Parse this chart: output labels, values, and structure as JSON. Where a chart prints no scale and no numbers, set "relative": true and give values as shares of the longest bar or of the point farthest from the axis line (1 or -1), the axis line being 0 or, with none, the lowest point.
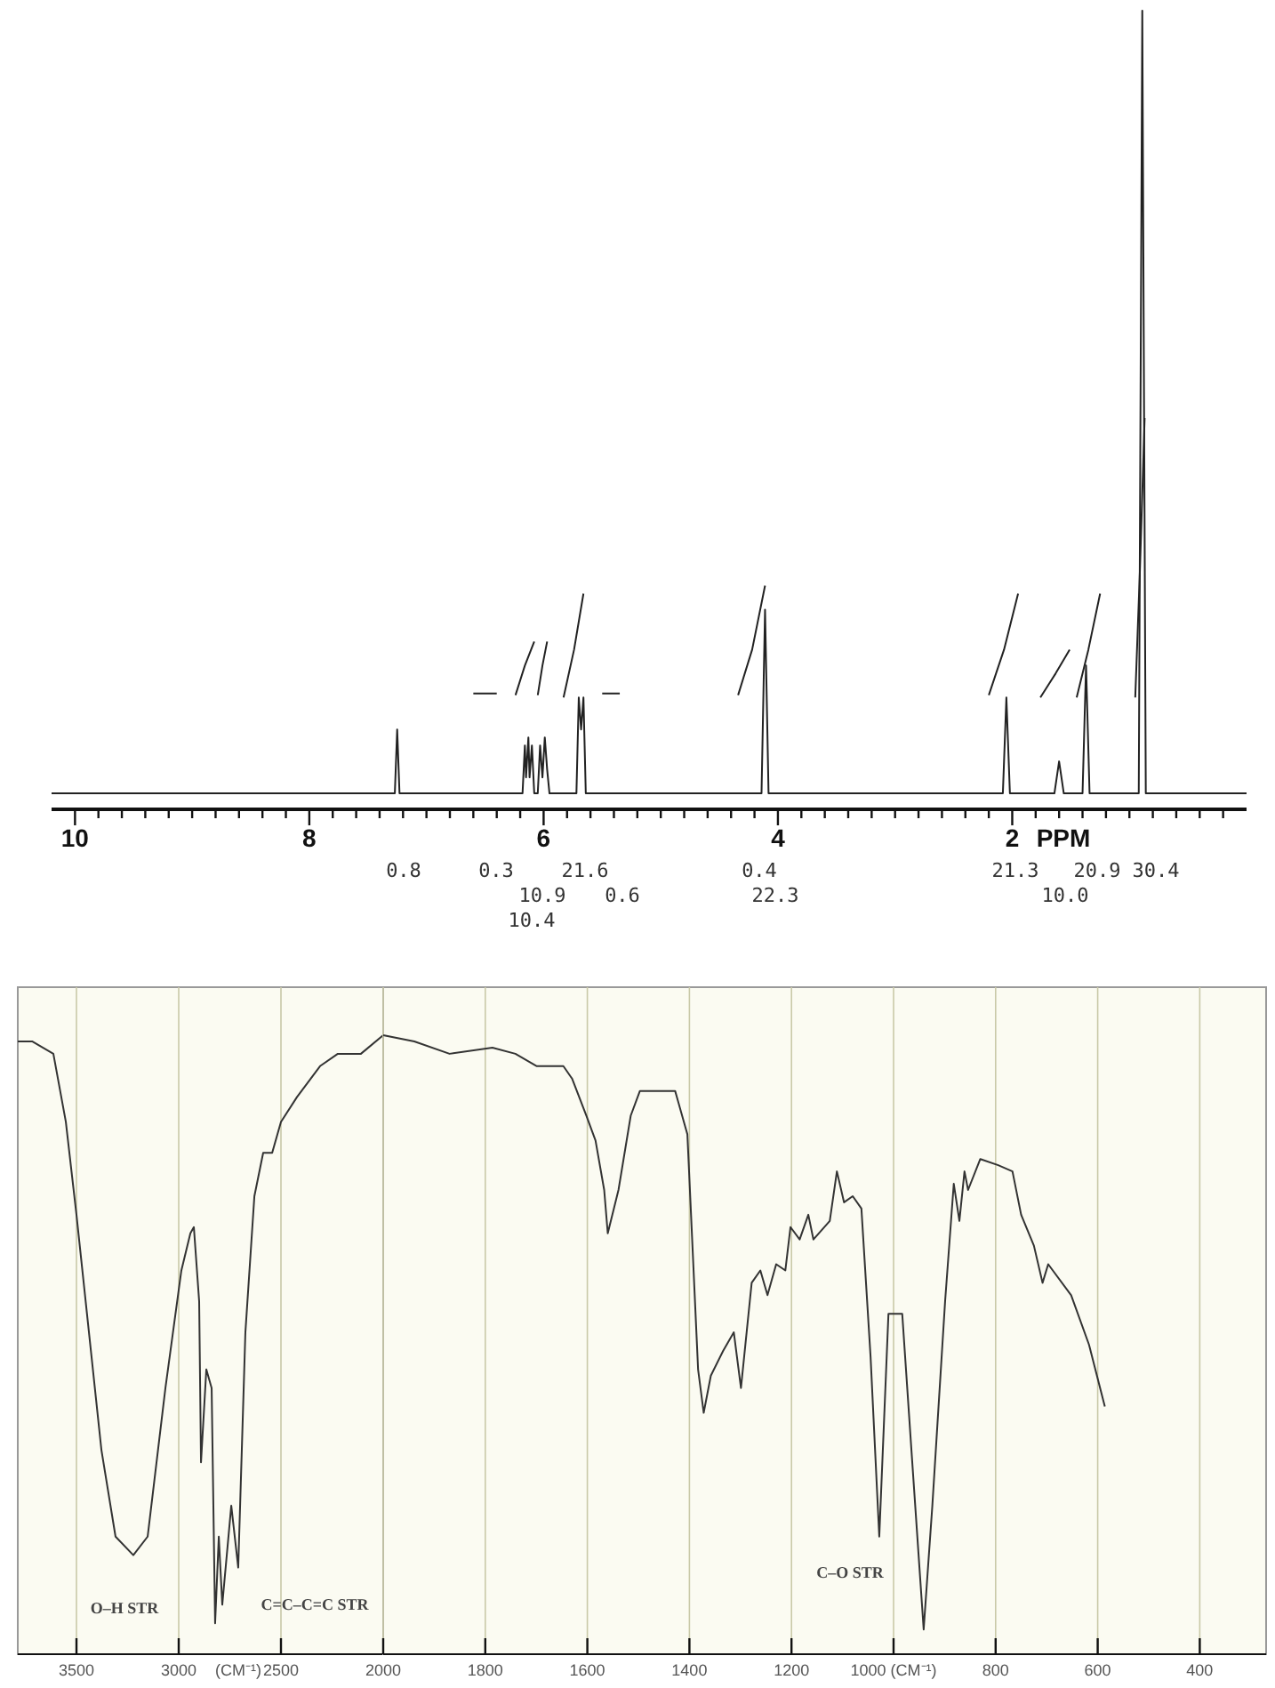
{
  "chart_data": [
    {
      "type": "line",
      "relative": true,
      "xlabel": "PPM",
      "xlim": [
        10.2,
        0
      ],
      "xticks": [
        10,
        {
          "value": 9.8,
          "label": null
        },
        {
          "value": 9.6,
          "label": null
        },
        {
          "value": 9.4,
          "label": null
        },
        {
          "value": 9.2,
          "label": null
        },
        {
          "value": 9,
          "label": null
        },
        {
          "value": 8.8,
          "label": null
        },
        {
          "value": 8.6,
          "label": null
        },
        {
          "value": 8.4,
          "label": null
        },
        {
          "value": 8.2,
          "label": null
        },
        8,
        {
          "value": 7.8,
          "label": null
        },
        {
          "value": 7.6,
          "label": null
        },
        {
          "value": 7.4,
          "label": null
        },
        {
          "value": 7.2,
          "label": null
        },
        {
          "value": 7,
          "label": null
        },
        {
          "value": 6.8,
          "label": null
        },
        {
          "value": 6.6,
          "label": null
        },
        {
          "value": 6.4,
          "label": null
        },
        {
          "value": 6.2,
          "label": null
        },
        6,
        {
          "value": 5.8,
          "label": null
        },
        {
          "value": 5.6,
          "label": null
        },
        {
          "value": 5.4,
          "label": null
        },
        {
          "value": 5.2,
          "label": null
        },
        {
          "value": 5,
          "label": null
        },
        {
          "value": 4.8,
          "label": null
        },
        {
          "value": 4.6,
          "label": null
        },
        {
          "value": 4.4,
          "label": null
        },
        {
          "value": 4.2,
          "label": null
        },
        4,
        {
          "value": 3.8,
          "label": null
        },
        {
          "value": 3.6,
          "label": null
        },
        {
          "value": 3.4,
          "label": null
        },
        {
          "value": 3.2,
          "label": null
        },
        {
          "value": 3,
          "label": null
        },
        {
          "value": 2.8,
          "label": null
        },
        {
          "value": 2.6,
          "label": null
        },
        {
          "value": 2.4,
          "label": null
        },
        {
          "value": 2.2,
          "label": null
        },
        2,
        {
          "value": 1.8,
          "label": null
        },
        {
          "value": 1.6,
          "label": null
        },
        {
          "value": 1.4,
          "label": null
        },
        {
          "value": 1.2,
          "label": null
        },
        {
          "value": 1,
          "label": null
        },
        {
          "value": 0.8,
          "label": null
        },
        {
          "value": 0.6,
          "label": null
        },
        {
          "value": 0.4,
          "label": null
        },
        {
          "value": 0.2,
          "label": null
        }
      ],
      "series": [
        {
          "color": "#222222",
          "x": [
            10.2,
            7.27,
            7.25,
            7.23,
            6.18,
            6.16,
            6.15,
            6.13,
            6.12,
            6.1,
            6.08,
            6.05,
            6.03,
            6.01,
            5.99,
            5.97,
            5.95,
            5.72,
            5.7,
            5.68,
            5.66,
            5.64,
            4.14,
            4.11,
            4.08,
            2.08,
            2.05,
            2.02,
            1.64,
            1.6,
            1.56,
            1.4,
            1.37,
            1.34,
            0.92,
            0.89,
            0.86,
            0
          ],
          "values": [
            0.02,
            0.02,
            0.1,
            0.02,
            0.02,
            0.08,
            0.04,
            0.09,
            0.04,
            0.08,
            0.02,
            0.02,
            0.08,
            0.04,
            0.09,
            0.05,
            0.02,
            0.02,
            0.14,
            0.1,
            0.14,
            0.02,
            0.02,
            0.25,
            0.02,
            0.02,
            0.14,
            0.02,
            0.02,
            0.06,
            0.02,
            0.02,
            0.18,
            0.02,
            0.02,
            1,
            0.02,
            0.02
          ]
        },
        {
          "color": "#222222",
          "x": [
            6.6,
            6.4,
            6.3,
            6.24,
            6.16,
            6.08,
            6.06,
            6.05,
            6.01,
            5.97,
            5.9,
            5.83,
            5.74,
            5.66,
            5.6,
            5.5,
            5.35,
            5.0,
            4.34,
            4.22,
            4.11,
            3.0,
            2.2,
            2.07,
            1.95,
            1.85,
            1.76,
            1.63,
            1.51,
            1.48,
            1.45,
            1.35,
            1.25,
            1.1,
            0.95,
            0.91,
            0.87
          ],
          "values": [
            0.145,
            0.145,
            null,
            0.143,
            0.18,
            0.21,
            null,
            0.143,
            0.18,
            0.21,
            null,
            0.14,
            0.2,
            0.27,
            null,
            0.145,
            0.145,
            null,
            0.143,
            0.2,
            0.28,
            null,
            0.143,
            0.2,
            0.27,
            null,
            0.14,
            0.17,
            0.2,
            null,
            0.14,
            0.2,
            0.27,
            null,
            0.14,
            0.3,
            0.49
          ]
        }
      ],
      "annotations": [
        "0.8",
        "0.3",
        "10.9",
        "10.4",
        "21.6",
        "0.6",
        "0.4",
        "22.3",
        "21.3",
        "20.9",
        "10.0",
        "30.4"
      ]
    },
    {
      "type": "line",
      "relative": true,
      "xlabel": "(CM⁻¹)",
      "xlim": [
        3787,
        2000
      ],
      "grid": "x",
      "xticks": [
        3500,
        3000,
        2500
      ],
      "series": [
        {
          "color": "#333333",
          "x": [
            3787,
            3717,
            3613,
            3552,
            3500,
            3439,
            3378,
            3309,
            3222,
            3152,
            3065,
            2987,
            2943,
            2926,
            2900,
            2891,
            2865,
            2839,
            2822,
            2804,
            2787,
            2743,
            2709,
            2674,
            2630,
            2587,
            2543,
            2500,
            2422,
            2309,
            2222,
            2109,
            2000
          ],
          "values": [
            0.99,
            0.99,
            0.97,
            0.86,
            0.71,
            0.52,
            0.33,
            0.19,
            0.16,
            0.19,
            0.43,
            0.62,
            0.68,
            0.69,
            0.57,
            0.31,
            0.46,
            0.43,
            0.05,
            0.19,
            0.08,
            0.24,
            0.14,
            0.52,
            0.74,
            0.81,
            0.81,
            0.86,
            0.9,
            0.95,
            0.97,
            0.97,
            1
          ]
        }
      ],
      "annotations": [
        "O–H STR",
        "C=C–C=C STR"
      ]
    },
    {
      "type": "line",
      "relative": true,
      "xlim": [
        2000,
        270
      ],
      "grid": "x",
      "xticks": [
        2000,
        1800,
        1600,
        1400,
        1200,
        {
          "value": 1000,
          "label": "1000 (CM⁻¹)"
        },
        800,
        600,
        400
      ],
      "series": [
        {
          "color": "#333333",
          "x": [
            2000,
            1939,
            1870,
            1786,
            1741,
            1699,
            1647,
            1630,
            1602,
            1584,
            1567,
            1560,
            1539,
            1515,
            1497,
            1428,
            1404,
            1383,
            1372,
            1358,
            1334,
            1313,
            1299,
            1278,
            1261,
            1247,
            1230,
            1212,
            1202,
            1184,
            1167,
            1157,
            1125,
            1111,
            1097,
            1080,
            1063,
            1045,
            1028,
            1010,
            983,
            965,
            941,
            924,
            899,
            882,
            871,
            861,
            854,
            830,
            795,
            767,
            750,
            725,
            708,
            697,
            652,
            617,
            586
          ],
          "values": [
            1,
            0.99,
            0.97,
            0.98,
            0.97,
            0.95,
            0.95,
            0.93,
            0.87,
            0.83,
            0.75,
            0.68,
            0.75,
            0.87,
            0.91,
            0.91,
            0.84,
            0.46,
            0.39,
            0.45,
            0.49,
            0.52,
            0.43,
            0.6,
            0.62,
            0.58,
            0.63,
            0.62,
            0.69,
            0.67,
            0.71,
            0.67,
            0.7,
            0.78,
            0.73,
            0.74,
            0.72,
            0.48,
            0.19,
            0.55,
            0.55,
            0.33,
            0.04,
            0.24,
            0.57,
            0.76,
            0.7,
            0.78,
            0.75,
            0.8,
            0.79,
            0.78,
            0.71,
            0.66,
            0.6,
            0.63,
            0.58,
            0.5,
            0.4
          ]
        }
      ],
      "annotations": [
        "C–O STR"
      ]
    }
  ]
}
